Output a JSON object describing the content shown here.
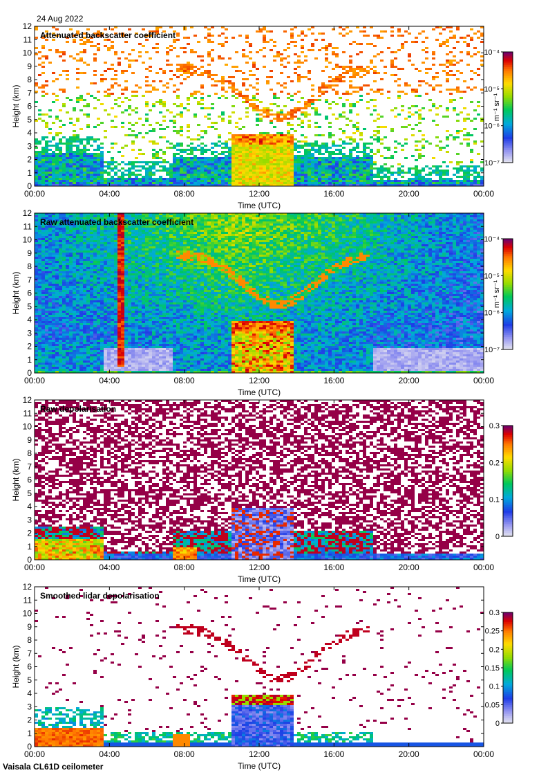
{
  "date_label": "24 Aug 2022",
  "footer": "Vaisala CL61D ceilometer",
  "chart_data": [
    {
      "type": "heatmap",
      "title": "Attenuated backscatter coefficient",
      "xlabel": "Time (UTC)",
      "ylabel": "Height (km)",
      "x_ticks": [
        "00:00",
        "04:00",
        "08:00",
        "12:00",
        "16:00",
        "20:00",
        "00:00"
      ],
      "y_ticks": [
        "0",
        "1",
        "2",
        "3",
        "4",
        "5",
        "6",
        "7",
        "8",
        "9",
        "10",
        "11",
        "12"
      ],
      "xlim_hours": [
        0,
        24
      ],
      "ylim": [
        0,
        12
      ],
      "colorbar": {
        "scale": "log",
        "range": [
          1e-07,
          0.0001
        ],
        "tick_labels": [
          "10⁻⁷",
          "10⁻⁶",
          "10⁻⁵",
          "10⁻⁴"
        ],
        "unit_label": "m⁻¹ sr⁻¹"
      },
      "features": {
        "boundary_layer_top_km": 2.5,
        "cloud_layer_km": [
          3.3,
          4.0
        ],
        "cloud_time_hours": [
          10.5,
          13.8
        ],
        "elevated_layer_km": [
          4.4,
          4.6
        ],
        "arc_peak_km": 9.0
      }
    },
    {
      "type": "heatmap",
      "title": "Raw attenuated backscatter coefficient",
      "xlabel": "Time (UTC)",
      "ylabel": "Height (km)",
      "x_ticks": [
        "00:00",
        "04:00",
        "08:00",
        "12:00",
        "16:00",
        "20:00",
        "00:00"
      ],
      "y_ticks": [
        "0",
        "1",
        "2",
        "3",
        "4",
        "5",
        "6",
        "7",
        "8",
        "9",
        "10",
        "11",
        "12"
      ],
      "xlim_hours": [
        0,
        24
      ],
      "ylim": [
        0,
        12
      ],
      "colorbar": {
        "scale": "log",
        "range": [
          1e-07,
          0.0001
        ],
        "tick_labels": [
          "10⁻⁷",
          "10⁻⁶",
          "10⁻⁵",
          "10⁻⁴"
        ],
        "unit_label": "m⁻¹ sr⁻¹"
      },
      "features": {
        "vertical_streak_hours": [
          4.5,
          6.0
        ],
        "cloud_layer_km": [
          3.3,
          4.0
        ]
      }
    },
    {
      "type": "heatmap",
      "title": "Raw depolarisation",
      "xlabel": "Time (UTC)",
      "ylabel": "Height (km)",
      "x_ticks": [
        "00:00",
        "04:00",
        "08:00",
        "12:00",
        "16:00",
        "20:00",
        "00:00"
      ],
      "y_ticks": [
        "0",
        "1",
        "2",
        "3",
        "4",
        "5",
        "6",
        "7",
        "8",
        "9",
        "10",
        "11",
        "12"
      ],
      "xlim_hours": [
        0,
        24
      ],
      "ylim": [
        0,
        12
      ],
      "colorbar": {
        "scale": "linear",
        "range": [
          0,
          0.3
        ],
        "tick_labels": [
          "0",
          "0.1",
          "0.2",
          "0.3"
        ]
      }
    },
    {
      "type": "heatmap",
      "title": "Smoothed lidar depolarisation",
      "xlabel": "Time (UTC)",
      "ylabel": "Height (km)",
      "x_ticks": [
        "00:00",
        "04:00",
        "08:00",
        "12:00",
        "16:00",
        "20:00",
        "00:00"
      ],
      "y_ticks": [
        "0",
        "1",
        "2",
        "3",
        "4",
        "5",
        "6",
        "7",
        "8",
        "9",
        "10",
        "11",
        "12"
      ],
      "xlim_hours": [
        0,
        24
      ],
      "ylim": [
        0,
        12
      ],
      "colorbar": {
        "scale": "linear",
        "range": [
          0,
          0.3
        ],
        "tick_labels": [
          "0",
          "0.05",
          "0.1",
          "0.15",
          "0.2",
          "0.25",
          "0.3"
        ]
      }
    }
  ]
}
